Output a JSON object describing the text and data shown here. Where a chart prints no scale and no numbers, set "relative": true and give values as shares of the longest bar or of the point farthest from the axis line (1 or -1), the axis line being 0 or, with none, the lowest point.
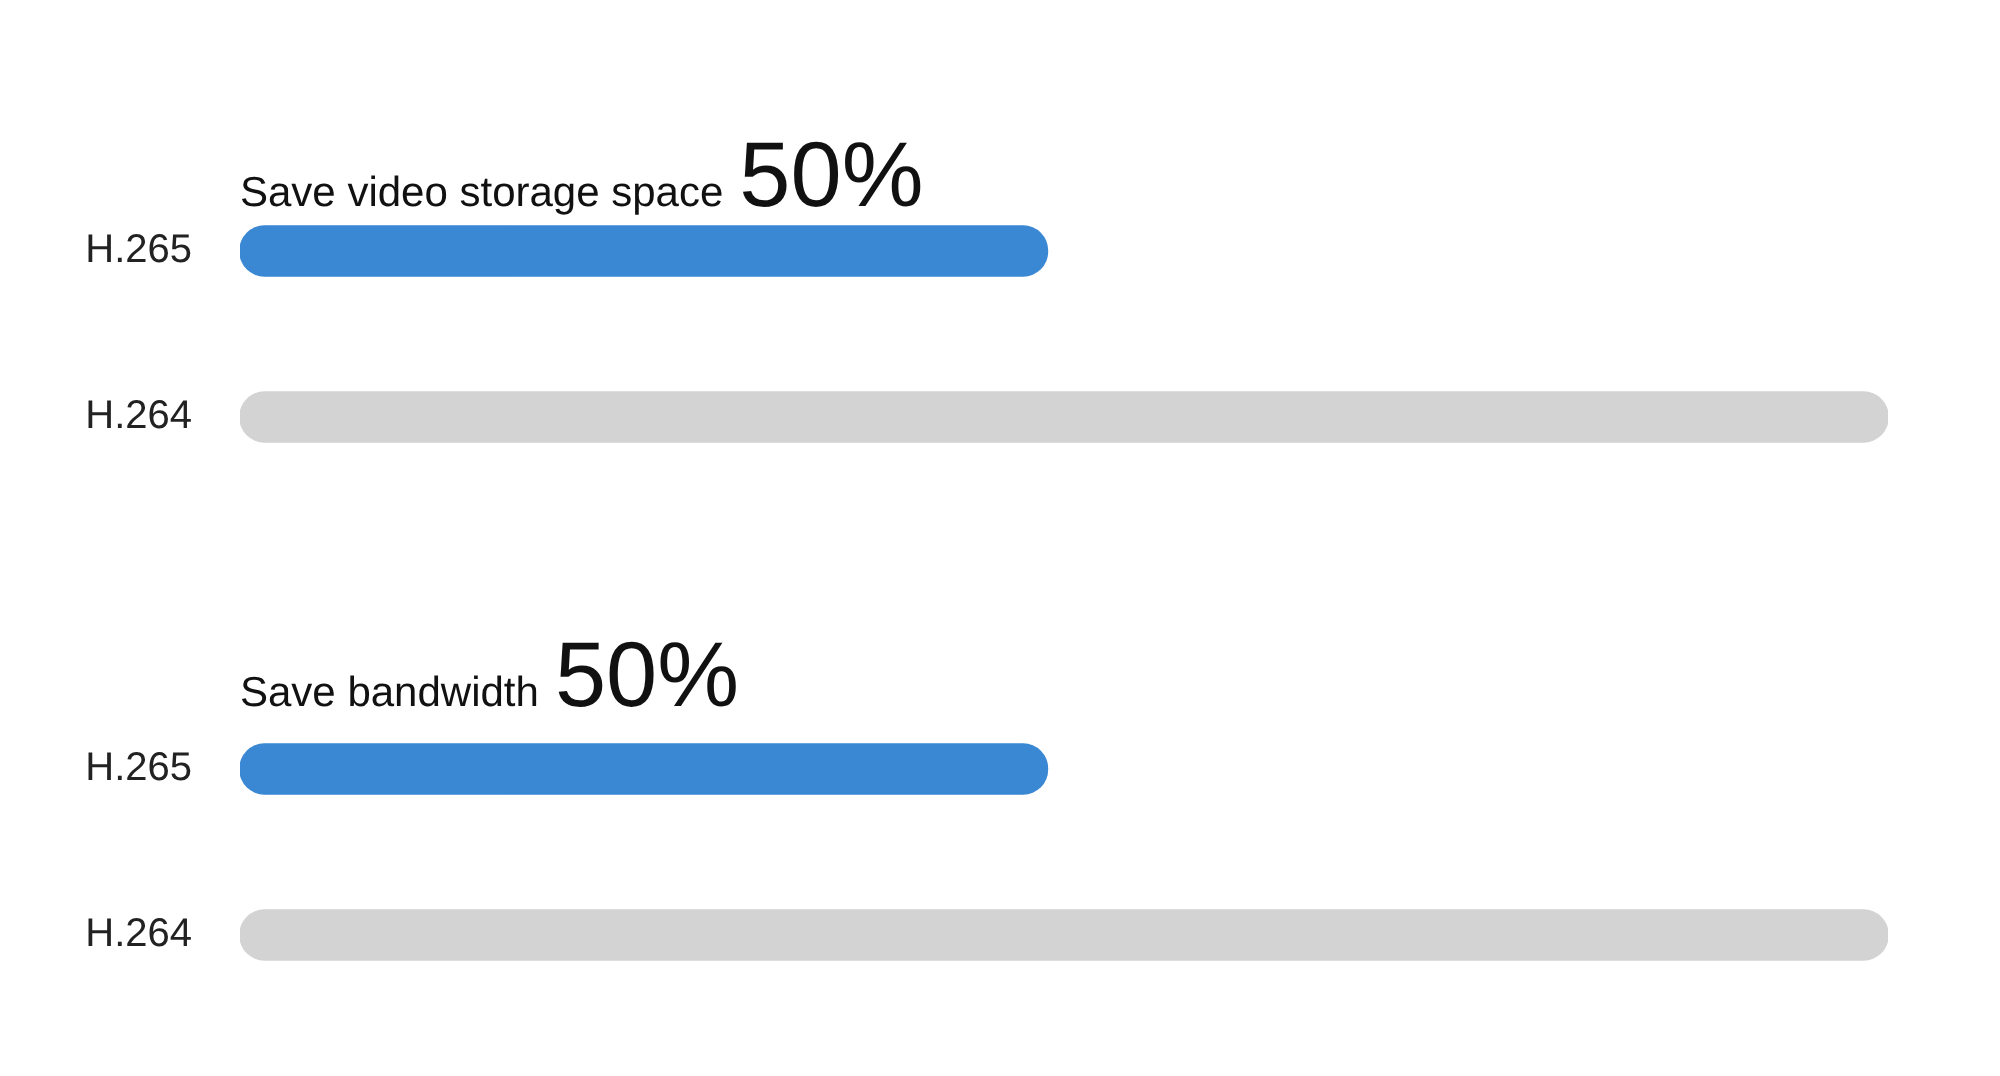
{
  "chart_data": [
    {
      "type": "bar",
      "orientation": "horizontal",
      "relative": true,
      "title": "Save video storage space",
      "annotations": [
        "50%"
      ],
      "categories": [
        "H.265",
        "H.264"
      ],
      "values": [
        0.49,
        1
      ],
      "colors": [
        "#3a87d4",
        "#d3d3d3"
      ]
    },
    {
      "type": "bar",
      "orientation": "horizontal",
      "relative": true,
      "title": "Save bandwidth",
      "annotations": [
        "50%"
      ],
      "categories": [
        "H.265",
        "H.264"
      ],
      "values": [
        0.49,
        1
      ],
      "colors": [
        "#3a87d4",
        "#d3d3d3"
      ]
    }
  ]
}
